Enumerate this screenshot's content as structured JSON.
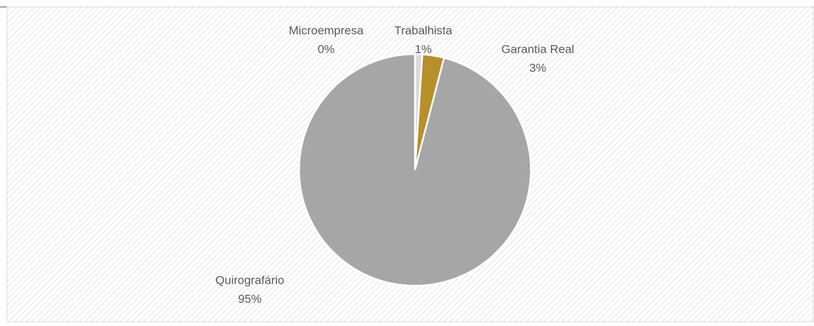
{
  "chart_data": {
    "type": "pie",
    "categories": [
      "Microempresa",
      "Trabalhista",
      "Garantia Real",
      "Quirografário"
    ],
    "values": [
      0,
      1,
      3,
      95
    ],
    "value_labels": [
      "0%",
      "1%",
      "3%",
      "95%"
    ],
    "colors": [
      "#d9d9d9",
      "#dadada",
      "#b8902a",
      "#a6a6a6"
    ]
  }
}
